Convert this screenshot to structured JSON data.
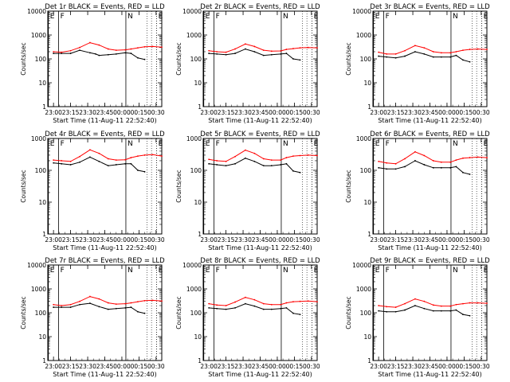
{
  "figure": {
    "start_time_label": "Start Time (11-Aug-11 22:52:40)",
    "ylabel": "Counts/sec",
    "x_ticks": [
      "23:00",
      "23:15",
      "23:30",
      "23:45",
      "00:00",
      "00:15",
      "00:30"
    ],
    "y_ticks": [
      "1",
      "10",
      "100",
      "1000",
      "10000"
    ],
    "event_markers": [
      {
        "label": "E",
        "time_min": 0.5
      },
      {
        "label": "F",
        "time_min": 9.5
      },
      {
        "label": "N",
        "time_min": 68.5
      },
      {
        "label": "E",
        "time_min": 95.5
      }
    ],
    "colors": {
      "events": "#000000",
      "lld": "#ff0000"
    }
  },
  "chart_data": [
    {
      "type": "line",
      "title": "Det 1r BLACK = Events, RED = LLD",
      "xlabel": "Start Time (11-Aug-11 22:52:40)",
      "ylabel": "Counts/sec",
      "x_unit": "minutes after 22:52:40",
      "xlim": [
        0,
        100
      ],
      "ylim": [
        1,
        10000
      ],
      "yscale": "log",
      "series": [
        {
          "name": "Events",
          "color": "#000000",
          "x": [
            5,
            12,
            20,
            28,
            37,
            42,
            45,
            53,
            60,
            68,
            73,
            79,
            85
          ],
          "y": [
            170,
            170,
            170,
            230,
            180,
            160,
            140,
            150,
            160,
            180,
            170,
            110,
            95
          ]
        },
        {
          "name": "LLD",
          "color": "#ff0000",
          "x": [
            5,
            12,
            20,
            28,
            37,
            45,
            53,
            60,
            68,
            73,
            79,
            85,
            92,
            100
          ],
          "y": [
            200,
            190,
            220,
            300,
            480,
            380,
            260,
            230,
            240,
            260,
            290,
            320,
            330,
            310
          ]
        }
      ]
    },
    {
      "type": "line",
      "title": "Det 2r BLACK = Events, RED = LLD",
      "xlabel": "Start Time (11-Aug-11 22:52:40)",
      "ylabel": "Counts/sec",
      "xlim": [
        0,
        100
      ],
      "ylim": [
        1,
        10000
      ],
      "yscale": "log",
      "series": [
        {
          "name": "Events",
          "color": "#000000",
          "x": [
            5,
            12,
            20,
            28,
            37,
            45,
            53,
            60,
            68,
            73,
            79,
            85
          ],
          "y": [
            170,
            160,
            150,
            170,
            260,
            200,
            140,
            150,
            160,
            170,
            100,
            90
          ]
        },
        {
          "name": "LLD",
          "color": "#ff0000",
          "x": [
            5,
            12,
            20,
            28,
            37,
            45,
            53,
            60,
            68,
            73,
            79,
            85,
            92,
            100
          ],
          "y": [
            220,
            200,
            190,
            260,
            420,
            330,
            230,
            210,
            215,
            250,
            270,
            290,
            300,
            290
          ]
        }
      ]
    },
    {
      "type": "line",
      "title": "Det 3r BLACK = Events, RED = LLD",
      "xlabel": "Start Time (11-Aug-11 22:52:40)",
      "ylabel": "Counts/sec",
      "xlim": [
        0,
        100
      ],
      "ylim": [
        1,
        10000
      ],
      "yscale": "log",
      "series": [
        {
          "name": "Events",
          "color": "#000000",
          "x": [
            5,
            12,
            20,
            28,
            37,
            45,
            53,
            60,
            68,
            73,
            79,
            85
          ],
          "y": [
            130,
            120,
            110,
            130,
            200,
            160,
            120,
            120,
            120,
            140,
            90,
            75
          ]
        },
        {
          "name": "LLD",
          "color": "#ff0000",
          "x": [
            5,
            12,
            20,
            28,
            37,
            45,
            53,
            60,
            68,
            73,
            79,
            85,
            92,
            100
          ],
          "y": [
            190,
            160,
            160,
            220,
            360,
            290,
            200,
            180,
            180,
            200,
            230,
            250,
            260,
            250
          ]
        }
      ]
    },
    {
      "type": "line",
      "title": "Det 4r BLACK = Events, RED = LLD",
      "xlabel": "Start Time (11-Aug-11 22:52:40)",
      "ylabel": "Counts/sec",
      "xlim": [
        0,
        100
      ],
      "ylim": [
        1,
        1000
      ],
      "yscale": "log",
      "series": [
        {
          "name": "Events",
          "color": "#000000",
          "x": [
            5,
            12,
            20,
            28,
            37,
            45,
            53,
            60,
            68,
            73,
            79,
            85
          ],
          "y": [
            170,
            160,
            150,
            180,
            260,
            190,
            140,
            150,
            160,
            160,
            100,
            90
          ]
        },
        {
          "name": "LLD",
          "color": "#ff0000",
          "x": [
            5,
            12,
            20,
            28,
            37,
            45,
            53,
            60,
            68,
            73,
            79,
            85,
            92,
            100
          ],
          "y": [
            210,
            200,
            190,
            270,
            440,
            340,
            230,
            210,
            215,
            250,
            280,
            300,
            310,
            280
          ]
        }
      ]
    },
    {
      "type": "line",
      "title": "Det 5r BLACK = Events, RED = LLD",
      "xlabel": "Start Time (11-Aug-11 22:52:40)",
      "ylabel": "Counts/sec",
      "xlim": [
        0,
        100
      ],
      "ylim": [
        1,
        1000
      ],
      "yscale": "log",
      "series": [
        {
          "name": "Events",
          "color": "#000000",
          "x": [
            5,
            12,
            20,
            28,
            37,
            45,
            53,
            60,
            68,
            73,
            79,
            85
          ],
          "y": [
            160,
            150,
            140,
            160,
            240,
            190,
            140,
            140,
            150,
            160,
            95,
            85
          ]
        },
        {
          "name": "LLD",
          "color": "#ff0000",
          "x": [
            5,
            12,
            20,
            28,
            37,
            45,
            53,
            60,
            68,
            73,
            79,
            85,
            92,
            100
          ],
          "y": [
            220,
            200,
            190,
            270,
            430,
            340,
            230,
            210,
            210,
            250,
            280,
            290,
            300,
            290
          ]
        }
      ]
    },
    {
      "type": "line",
      "title": "Det 6r BLACK = Events, RED = LLD",
      "xlabel": "Start Time (11-Aug-11 22:52:40)",
      "ylabel": "Counts/sec",
      "xlim": [
        0,
        100
      ],
      "ylim": [
        1,
        1000
      ],
      "yscale": "log",
      "series": [
        {
          "name": "Events",
          "color": "#000000",
          "x": [
            5,
            12,
            20,
            28,
            37,
            45,
            53,
            60,
            68,
            73,
            79,
            85
          ],
          "y": [
            120,
            110,
            110,
            130,
            200,
            150,
            120,
            120,
            120,
            130,
            85,
            75
          ]
        },
        {
          "name": "LLD",
          "color": "#ff0000",
          "x": [
            5,
            12,
            20,
            28,
            37,
            45,
            53,
            60,
            68,
            73,
            79,
            85,
            92,
            100
          ],
          "y": [
            190,
            170,
            160,
            230,
            380,
            290,
            200,
            180,
            180,
            210,
            240,
            250,
            260,
            250
          ]
        }
      ]
    },
    {
      "type": "line",
      "title": "Det 7r BLACK = Events, RED = LLD",
      "xlabel": "Start Time (11-Aug-11 22:52:40)",
      "ylabel": "Counts/sec",
      "xlim": [
        0,
        100
      ],
      "ylim": [
        1,
        10000
      ],
      "yscale": "log",
      "series": [
        {
          "name": "Events",
          "color": "#000000",
          "x": [
            5,
            12,
            20,
            28,
            37,
            45,
            53,
            60,
            68,
            73,
            79,
            85
          ],
          "y": [
            170,
            170,
            170,
            220,
            250,
            180,
            140,
            150,
            160,
            170,
            110,
            95
          ]
        },
        {
          "name": "LLD",
          "color": "#ff0000",
          "x": [
            5,
            12,
            20,
            28,
            37,
            45,
            53,
            60,
            68,
            73,
            79,
            85,
            92,
            100
          ],
          "y": [
            220,
            200,
            220,
            300,
            480,
            380,
            260,
            230,
            240,
            260,
            290,
            320,
            330,
            310
          ]
        }
      ]
    },
    {
      "type": "line",
      "title": "Det 8r BLACK = Events, RED = LLD",
      "xlabel": "Start Time (11-Aug-11 22:52:40)",
      "ylabel": "Counts/sec",
      "xlim": [
        0,
        100
      ],
      "ylim": [
        1,
        10000
      ],
      "yscale": "log",
      "series": [
        {
          "name": "Events",
          "color": "#000000",
          "x": [
            5,
            12,
            20,
            28,
            37,
            45,
            53,
            60,
            68,
            73,
            79,
            85
          ],
          "y": [
            160,
            150,
            140,
            160,
            240,
            190,
            140,
            140,
            150,
            160,
            95,
            85
          ]
        },
        {
          "name": "LLD",
          "color": "#ff0000",
          "x": [
            5,
            12,
            20,
            28,
            37,
            45,
            53,
            60,
            68,
            73,
            79,
            85,
            92,
            100
          ],
          "y": [
            240,
            210,
            200,
            280,
            440,
            350,
            240,
            220,
            220,
            260,
            290,
            300,
            310,
            290
          ]
        }
      ]
    },
    {
      "type": "line",
      "title": "Det 9r BLACK = Events, RED = LLD",
      "xlabel": "Start Time (11-Aug-11 22:52:40)",
      "ylabel": "Counts/sec",
      "xlim": [
        0,
        100
      ],
      "ylim": [
        1,
        10000
      ],
      "yscale": "log",
      "series": [
        {
          "name": "Events",
          "color": "#000000",
          "x": [
            5,
            12,
            20,
            28,
            37,
            45,
            53,
            60,
            68,
            73,
            79,
            85
          ],
          "y": [
            120,
            110,
            110,
            130,
            200,
            150,
            120,
            120,
            120,
            130,
            85,
            75
          ]
        },
        {
          "name": "LLD",
          "color": "#ff0000",
          "x": [
            5,
            12,
            20,
            28,
            37,
            45,
            53,
            60,
            68,
            73,
            79,
            85,
            92,
            100
          ],
          "y": [
            200,
            180,
            170,
            240,
            380,
            300,
            210,
            190,
            190,
            220,
            240,
            260,
            260,
            250
          ]
        }
      ]
    }
  ]
}
